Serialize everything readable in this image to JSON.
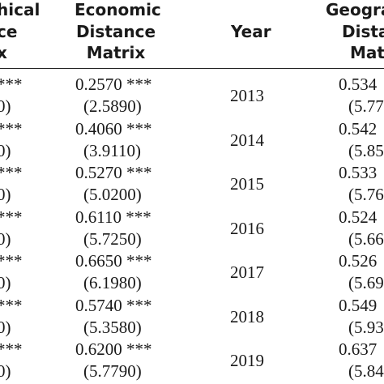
{
  "headers": {
    "col1": [
      "hical",
      "ce",
      "x"
    ],
    "col2": [
      "Economic",
      "Distance",
      "Matrix"
    ],
    "year": "Year",
    "col4": [
      "Geogra",
      "Dista",
      "Mat"
    ]
  },
  "rows": [
    {
      "year": "2013",
      "c1a": "***",
      "c1b": "0)",
      "c2a": "0.2570 ***",
      "c2b": "(2.5890)",
      "c4a": "0.534",
      "c4b": "(5.77"
    },
    {
      "year": "2014",
      "c1a": "***",
      "c1b": "0)",
      "c2a": "0.4060 ***",
      "c2b": "(3.9110)",
      "c4a": "0.542",
      "c4b": "(5.85"
    },
    {
      "year": "2015",
      "c1a": "***",
      "c1b": "0)",
      "c2a": "0.5270 ***",
      "c2b": "(5.0200)",
      "c4a": "0.533",
      "c4b": "(5.76"
    },
    {
      "year": "2016",
      "c1a": "***",
      "c1b": "0)",
      "c2a": "0.6110 ***",
      "c2b": "(5.7250)",
      "c4a": "0.524",
      "c4b": "(5.66"
    },
    {
      "year": "2017",
      "c1a": "***",
      "c1b": "0)",
      "c2a": "0.6650 ***",
      "c2b": "(6.1980)",
      "c4a": "0.526",
      "c4b": "(5.69"
    },
    {
      "year": "2018",
      "c1a": "***",
      "c1b": "0)",
      "c2a": "0.5740 ***",
      "c2b": "(5.3580)",
      "c4a": "0.549",
      "c4b": "(5.93"
    },
    {
      "year": "2019",
      "c1a": "***",
      "c1b": "0)",
      "c2a": "0.6200 ***",
      "c2b": "(5.7790)",
      "c4a": "0.637",
      "c4b": "(5.84"
    }
  ]
}
